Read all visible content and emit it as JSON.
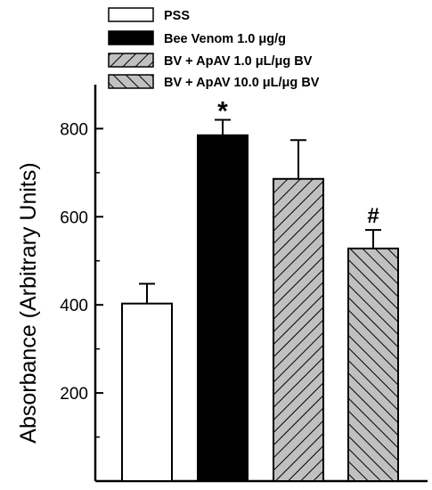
{
  "chart_data": {
    "type": "bar",
    "title": "",
    "xlabel": "",
    "ylabel": "Absorbance (Arbitrary Units)",
    "ylim": [
      0,
      900
    ],
    "yticks": [
      200,
      400,
      600,
      800
    ],
    "grid": false,
    "legend_position": "top",
    "series": [
      {
        "name": "PSS",
        "value": 403,
        "error": 45,
        "fill": "#ffffff",
        "pattern": "none",
        "annotation": ""
      },
      {
        "name": "Bee Venom 1.0 μg/g",
        "value": 785,
        "error": 35,
        "fill": "#000000",
        "pattern": "none",
        "annotation": "*"
      },
      {
        "name": "BV + ApAV 1.0 μL/μg BV",
        "value": 686,
        "error": 88,
        "fill": "#c0c0c0",
        "pattern": "hatch-forward",
        "annotation": ""
      },
      {
        "name": "BV + ApAV 10.0 μL/μg BV",
        "value": 528,
        "error": 42,
        "fill": "#c0c0c0",
        "pattern": "hatch-backward",
        "annotation": "#"
      }
    ]
  }
}
